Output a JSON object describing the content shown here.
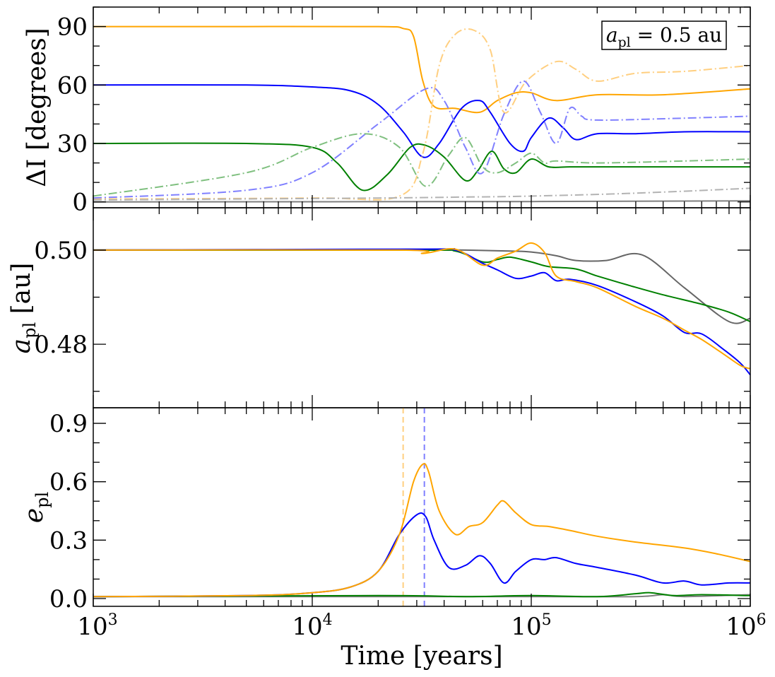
{
  "chart_data": [
    {
      "type": "line",
      "panel": "inclination",
      "ylabel": "ΔI [degrees]",
      "xscale": "log",
      "xlim": [
        1000,
        1000000
      ],
      "ylim": [
        -3,
        100
      ],
      "yticks": [
        "0",
        "30",
        "60",
        "90"
      ],
      "annotation": "a_pl = 0.5 au",
      "series": [
        {
          "color": "#ffa500",
          "style": "solid",
          "x": [
            1000,
            5000,
            20000,
            26000,
            29000,
            32000,
            36000,
            45000,
            58000,
            70000,
            85000,
            100000,
            130000,
            200000,
            400000,
            1000000
          ],
          "y": [
            90,
            90,
            90,
            89,
            85,
            62,
            49,
            48,
            46,
            52,
            56,
            56,
            52,
            55,
            55,
            58
          ]
        },
        {
          "color": "#0000ff",
          "style": "solid",
          "x": [
            1000,
            5000,
            10000,
            15000,
            20000,
            26000,
            32000,
            38000,
            48000,
            58000,
            65000,
            80000,
            92000,
            100000,
            120000,
            140000,
            160000,
            200000,
            300000,
            500000,
            1000000
          ],
          "y": [
            60,
            60,
            59,
            57,
            50,
            36,
            23,
            30,
            48,
            52,
            46,
            30,
            26,
            33,
            43,
            38,
            32,
            35,
            35,
            36,
            36
          ]
        },
        {
          "color": "#008000",
          "style": "solid",
          "x": [
            1000,
            5000,
            10000,
            13000,
            17000,
            22000,
            28000,
            33000,
            40000,
            50000,
            57000,
            66000,
            75000,
            85000,
            100000,
            120000,
            150000,
            200000,
            400000,
            1000000
          ],
          "y": [
            30,
            30,
            28,
            20,
            6,
            14,
            28,
            29,
            23,
            11,
            16,
            26,
            17,
            15,
            22,
            18,
            18,
            18,
            18,
            18
          ]
        },
        {
          "color": "#7f7f7f",
          "style": "solid",
          "x": [
            1000,
            100000,
            1000000
          ],
          "y": [
            0,
            0.2,
            0.5
          ]
        },
        {
          "color": "#ffcf80",
          "style": "dashdot",
          "x": [
            1000,
            10000,
            25000,
            32000,
            38000,
            45000,
            55000,
            65000,
            75000,
            95000,
            130000,
            160000,
            200000,
            300000,
            500000,
            1000000
          ],
          "y": [
            1.5,
            2,
            3,
            25,
            70,
            86,
            88,
            78,
            46,
            62,
            72,
            68,
            62,
            66,
            67,
            70
          ]
        },
        {
          "color": "#8080ff",
          "style": "dashdot",
          "x": [
            1000,
            5000,
            10000,
            20000,
            33000,
            40000,
            50000,
            60000,
            75000,
            92000,
            110000,
            130000,
            150000,
            170000,
            200000,
            500000,
            1000000
          ],
          "y": [
            2,
            6,
            15,
            40,
            58,
            52,
            28,
            15,
            45,
            62,
            46,
            30,
            48,
            44,
            42,
            43,
            44
          ]
        },
        {
          "color": "#80c080",
          "style": "dashdot",
          "x": [
            1000,
            5000,
            10000,
            17000,
            25000,
            33000,
            42000,
            50000,
            60000,
            70000,
            85000,
            100000,
            115000,
            130000,
            200000,
            500000,
            1000000
          ],
          "y": [
            3,
            15,
            28,
            35,
            28,
            8,
            24,
            33,
            18,
            15,
            20,
            25,
            20,
            21,
            20,
            21,
            22
          ]
        },
        {
          "color": "#b3b3b3",
          "style": "dashdot",
          "x": [
            1000,
            20000,
            50000,
            100000,
            300000,
            1000000
          ],
          "y": [
            1,
            2,
            2.5,
            3,
            4.5,
            7
          ]
        }
      ]
    },
    {
      "type": "line",
      "panel": "semimajor-axis",
      "ylabel": "a_pl [au]",
      "xscale": "log",
      "xlim": [
        1000,
        1000000
      ],
      "ylim": [
        0.4665,
        0.509
      ],
      "yticks": [
        "0.48",
        "0.50"
      ],
      "series": [
        {
          "color": "#666666",
          "style": "solid",
          "x": [
            1000,
            30000,
            50000,
            80000,
            100000,
            130000,
            160000,
            220000,
            320000,
            500000,
            800000,
            1000000
          ],
          "y": [
            0.5,
            0.5,
            0.5,
            0.4998,
            0.4996,
            0.4988,
            0.4978,
            0.4978,
            0.499,
            0.492,
            0.4848,
            0.4855
          ]
        },
        {
          "color": "#008000",
          "style": "solid",
          "x": [
            1000,
            30000,
            45000,
            60000,
            70000,
            80000,
            100000,
            120000,
            160000,
            200000,
            280000,
            400000,
            600000,
            800000,
            1000000
          ],
          "y": [
            0.5,
            0.5,
            0.4998,
            0.4975,
            0.498,
            0.4985,
            0.4975,
            0.4965,
            0.496,
            0.4945,
            0.4925,
            0.4905,
            0.4885,
            0.4868,
            0.4848
          ]
        },
        {
          "color": "#0000ff",
          "style": "solid",
          "x": [
            1000,
            30000,
            45000,
            60000,
            70000,
            85000,
            100000,
            115000,
            130000,
            150000,
            200000,
            300000,
            400000,
            500000,
            600000,
            750000,
            900000,
            1000000
          ],
          "y": [
            0.5,
            0.5002,
            0.5,
            0.4972,
            0.4958,
            0.494,
            0.4945,
            0.4952,
            0.4935,
            0.4938,
            0.4925,
            0.489,
            0.486,
            0.4825,
            0.4822,
            0.479,
            0.476,
            0.4735
          ]
        },
        {
          "color": "#ffa500",
          "style": "solid",
          "x": [
            1000,
            25000,
            32000,
            45000,
            60000,
            70000,
            85000,
            100000,
            115000,
            130000,
            160000,
            200000,
            300000,
            400000,
            500000,
            600000,
            750000,
            900000,
            1000000
          ],
          "y": [
            0.5,
            0.5,
            0.4993,
            0.5002,
            0.4968,
            0.4983,
            0.4998,
            0.5015,
            0.4995,
            0.4945,
            0.4933,
            0.492,
            0.488,
            0.4855,
            0.483,
            0.481,
            0.478,
            0.4755,
            0.4748
          ]
        }
      ]
    },
    {
      "type": "line",
      "panel": "eccentricity",
      "ylabel": "e_pl",
      "xlabel": "Time [years]",
      "xscale": "log",
      "xlim": [
        1000,
        1000000
      ],
      "ylim": [
        -0.04,
        0.98
      ],
      "yticks": [
        "0.0",
        "0.3",
        "0.6",
        "0.9"
      ],
      "xticks": [
        "10^3",
        "10^4",
        "10^5",
        "10^6"
      ],
      "vlines": [
        {
          "x": 26000,
          "color": "#ffcf80",
          "style": "dashed"
        },
        {
          "x": 32500,
          "color": "#8080ff",
          "style": "dashed"
        }
      ],
      "series": [
        {
          "color": "#7f7f7f",
          "style": "solid",
          "x": [
            1000,
            100000,
            300000,
            400000,
            500000,
            1000000
          ],
          "y": [
            0.01,
            0.01,
            0.01,
            0.02,
            0.01,
            0.02
          ]
        },
        {
          "color": "#008000",
          "style": "solid",
          "x": [
            1000,
            20000,
            50000,
            100000,
            200000,
            300000,
            350000,
            450000,
            600000,
            1000000
          ],
          "y": [
            0.01,
            0.015,
            0.01,
            0.015,
            0.01,
            0.025,
            0.03,
            0.015,
            0.02,
            0.015
          ]
        },
        {
          "color": "#0000ff",
          "style": "solid",
          "x": [
            1000,
            5000,
            10000,
            15000,
            20000,
            25000,
            30000,
            33000,
            36000,
            42000,
            50000,
            58000,
            65000,
            75000,
            85000,
            100000,
            115000,
            130000,
            160000,
            200000,
            300000,
            400000,
            500000,
            600000,
            800000,
            1000000
          ],
          "y": [
            0.01,
            0.015,
            0.03,
            0.06,
            0.14,
            0.33,
            0.43,
            0.42,
            0.3,
            0.16,
            0.17,
            0.22,
            0.18,
            0.08,
            0.14,
            0.2,
            0.2,
            0.21,
            0.18,
            0.16,
            0.12,
            0.08,
            0.09,
            0.07,
            0.08,
            0.08
          ]
        },
        {
          "color": "#ffa500",
          "style": "solid",
          "x": [
            1000,
            5000,
            10000,
            15000,
            20000,
            25000,
            29000,
            32000,
            34000,
            38000,
            45000,
            52000,
            60000,
            70000,
            75000,
            85000,
            100000,
            120000,
            150000,
            200000,
            300000,
            500000,
            700000,
            1000000
          ],
          "y": [
            0.01,
            0.015,
            0.03,
            0.06,
            0.14,
            0.33,
            0.6,
            0.69,
            0.65,
            0.45,
            0.33,
            0.37,
            0.39,
            0.48,
            0.5,
            0.44,
            0.38,
            0.37,
            0.35,
            0.32,
            0.29,
            0.26,
            0.23,
            0.19
          ]
        }
      ]
    }
  ]
}
